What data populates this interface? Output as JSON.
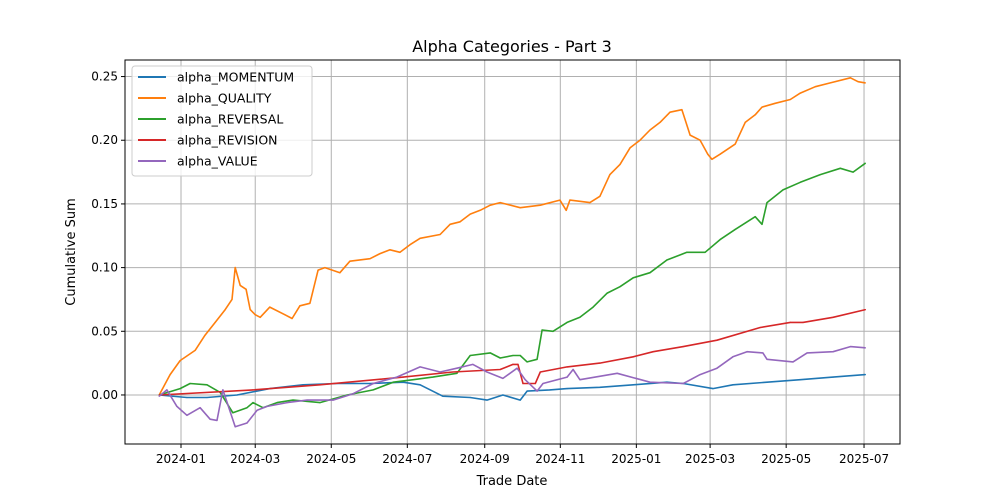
{
  "chart_data": {
    "type": "line",
    "title": "Alpha Categories - Part 3",
    "xlabel": "Trade Date",
    "ylabel": "Cumulative Sum",
    "x_units": "decimal year",
    "xlim": [
      2023.877,
      2025.579
    ],
    "ylim": [
      -0.0385,
      0.263
    ],
    "grid": true,
    "legend_placement": "top-left",
    "xticks": [
      {
        "label": "2024-01",
        "value": 2024.0
      },
      {
        "label": "2024-03",
        "value": 2024.163
      },
      {
        "label": "2024-05",
        "value": 2024.33
      },
      {
        "label": "2024-07",
        "value": 2024.497
      },
      {
        "label": "2024-09",
        "value": 2024.667
      },
      {
        "label": "2024-11",
        "value": 2024.833
      },
      {
        "label": "2025-01",
        "value": 2025.0
      },
      {
        "label": "2025-03",
        "value": 2025.162
      },
      {
        "label": "2025-05",
        "value": 2025.329
      },
      {
        "label": "2025-07",
        "value": 2025.5
      }
    ],
    "yticks": [
      {
        "label": "0.00",
        "value": 0.0
      },
      {
        "label": "0.05",
        "value": 0.05
      },
      {
        "label": "0.10",
        "value": 0.1
      },
      {
        "label": "0.15",
        "value": 0.15
      },
      {
        "label": "0.20",
        "value": 0.2
      },
      {
        "label": "0.25",
        "value": 0.25
      }
    ],
    "series": [
      {
        "name": "alpha_MOMENTUM",
        "color": "#1f77b4",
        "points": [
          [
            2023.952,
            0
          ],
          [
            2024.013,
            -0.002
          ],
          [
            2024.057,
            -0.002
          ],
          [
            2024.123,
            0
          ],
          [
            2024.195,
            0.005
          ],
          [
            2024.268,
            0.008
          ],
          [
            2024.343,
            0.009
          ],
          [
            2024.415,
            0.009
          ],
          [
            2024.488,
            0.01
          ],
          [
            2024.525,
            0.008
          ],
          [
            2024.575,
            -0.001
          ],
          [
            2024.635,
            -0.002
          ],
          [
            2024.672,
            -0.004
          ],
          [
            2024.707,
            0
          ],
          [
            2024.745,
            -0.004
          ],
          [
            2024.76,
            0.003
          ],
          [
            2024.81,
            0.004
          ],
          [
            2024.848,
            0.005
          ],
          [
            2024.92,
            0.006
          ],
          [
            2024.993,
            0.008
          ],
          [
            2025.067,
            0.01
          ],
          [
            2025.103,
            0.009
          ],
          [
            2025.168,
            0.005
          ],
          [
            2025.212,
            0.008
          ],
          [
            2025.287,
            0.01
          ],
          [
            2025.36,
            0.012
          ],
          [
            2025.432,
            0.014
          ],
          [
            2025.503,
            0.016
          ]
        ]
      },
      {
        "name": "alpha_QUALITY",
        "color": "#ff7f0e",
        "points": [
          [
            2023.952,
            0
          ],
          [
            2023.976,
            0.016
          ],
          [
            2023.998,
            0.027
          ],
          [
            2024.031,
            0.035
          ],
          [
            2024.053,
            0.047
          ],
          [
            2024.075,
            0.057
          ],
          [
            2024.097,
            0.067
          ],
          [
            2024.112,
            0.075
          ],
          [
            2024.119,
            0.1
          ],
          [
            2024.13,
            0.086
          ],
          [
            2024.143,
            0.083
          ],
          [
            2024.152,
            0.067
          ],
          [
            2024.163,
            0.063
          ],
          [
            2024.174,
            0.061
          ],
          [
            2024.195,
            0.069
          ],
          [
            2024.228,
            0.063
          ],
          [
            2024.244,
            0.06
          ],
          [
            2024.261,
            0.07
          ],
          [
            2024.283,
            0.072
          ],
          [
            2024.301,
            0.098
          ],
          [
            2024.316,
            0.1
          ],
          [
            2024.349,
            0.096
          ],
          [
            2024.371,
            0.105
          ],
          [
            2024.415,
            0.107
          ],
          [
            2024.437,
            0.111
          ],
          [
            2024.459,
            0.114
          ],
          [
            2024.481,
            0.112
          ],
          [
            2024.503,
            0.118
          ],
          [
            2024.525,
            0.123
          ],
          [
            2024.569,
            0.126
          ],
          [
            2024.591,
            0.134
          ],
          [
            2024.613,
            0.136
          ],
          [
            2024.635,
            0.142
          ],
          [
            2024.657,
            0.145
          ],
          [
            2024.679,
            0.149
          ],
          [
            2024.701,
            0.151
          ],
          [
            2024.745,
            0.147
          ],
          [
            2024.789,
            0.149
          ],
          [
            2024.832,
            0.153
          ],
          [
            2024.846,
            0.145
          ],
          [
            2024.854,
            0.153
          ],
          [
            2024.898,
            0.151
          ],
          [
            2024.92,
            0.156
          ],
          [
            2024.942,
            0.173
          ],
          [
            2024.964,
            0.181
          ],
          [
            2024.986,
            0.194
          ],
          [
            2025.008,
            0.2
          ],
          [
            2025.03,
            0.208
          ],
          [
            2025.052,
            0.214
          ],
          [
            2025.074,
            0.222
          ],
          [
            2025.1,
            0.224
          ],
          [
            2025.118,
            0.204
          ],
          [
            2025.14,
            0.2
          ],
          [
            2025.157,
            0.189
          ],
          [
            2025.166,
            0.185
          ],
          [
            2025.184,
            0.189
          ],
          [
            2025.217,
            0.197
          ],
          [
            2025.239,
            0.214
          ],
          [
            2025.261,
            0.22
          ],
          [
            2025.276,
            0.226
          ],
          [
            2025.305,
            0.229
          ],
          [
            2025.338,
            0.232
          ],
          [
            2025.36,
            0.237
          ],
          [
            2025.393,
            0.242
          ],
          [
            2025.426,
            0.245
          ],
          [
            2025.47,
            0.249
          ],
          [
            2025.487,
            0.246
          ],
          [
            2025.503,
            0.245
          ]
        ]
      },
      {
        "name": "alpha_REVERSAL",
        "color": "#2ca02c",
        "points": [
          [
            2023.952,
            0
          ],
          [
            2023.998,
            0.005
          ],
          [
            2024.02,
            0.009
          ],
          [
            2024.057,
            0.008
          ],
          [
            2024.086,
            0.002
          ],
          [
            2024.114,
            -0.014
          ],
          [
            2024.145,
            -0.01
          ],
          [
            2024.158,
            -0.006
          ],
          [
            2024.18,
            -0.01
          ],
          [
            2024.211,
            -0.006
          ],
          [
            2024.246,
            -0.004
          ],
          [
            2024.305,
            -0.006
          ],
          [
            2024.365,
            0
          ],
          [
            2024.422,
            0.004
          ],
          [
            2024.466,
            0.01
          ],
          [
            2024.51,
            0.012
          ],
          [
            2024.553,
            0.014
          ],
          [
            2024.606,
            0.017
          ],
          [
            2024.635,
            0.031
          ],
          [
            2024.679,
            0.033
          ],
          [
            2024.701,
            0.029
          ],
          [
            2024.729,
            0.031
          ],
          [
            2024.745,
            0.031
          ],
          [
            2024.76,
            0.026
          ],
          [
            2024.782,
            0.028
          ],
          [
            2024.793,
            0.051
          ],
          [
            2024.817,
            0.05
          ],
          [
            2024.848,
            0.057
          ],
          [
            2024.876,
            0.061
          ],
          [
            2024.905,
            0.069
          ],
          [
            2024.936,
            0.08
          ],
          [
            2024.964,
            0.085
          ],
          [
            2024.993,
            0.092
          ],
          [
            2025.03,
            0.096
          ],
          [
            2025.067,
            0.106
          ],
          [
            2025.111,
            0.112
          ],
          [
            2025.151,
            0.112
          ],
          [
            2025.184,
            0.122
          ],
          [
            2025.217,
            0.13
          ],
          [
            2025.261,
            0.14
          ],
          [
            2025.276,
            0.134
          ],
          [
            2025.287,
            0.151
          ],
          [
            2025.322,
            0.161
          ],
          [
            2025.36,
            0.167
          ],
          [
            2025.404,
            0.173
          ],
          [
            2025.448,
            0.178
          ],
          [
            2025.476,
            0.175
          ],
          [
            2025.503,
            0.182
          ]
        ]
      },
      {
        "name": "alpha_REVISION",
        "color": "#d62728",
        "points": [
          [
            2023.952,
            0
          ],
          [
            2024.158,
            0.004
          ],
          [
            2024.305,
            0.008
          ],
          [
            2024.488,
            0.014
          ],
          [
            2024.597,
            0.018
          ],
          [
            2024.701,
            0.02
          ],
          [
            2024.729,
            0.024
          ],
          [
            2024.74,
            0.024
          ],
          [
            2024.751,
            0.009
          ],
          [
            2024.778,
            0.009
          ],
          [
            2024.789,
            0.018
          ],
          [
            2024.848,
            0.022
          ],
          [
            2024.92,
            0.025
          ],
          [
            2024.993,
            0.03
          ],
          [
            2025.037,
            0.034
          ],
          [
            2025.103,
            0.038
          ],
          [
            2025.177,
            0.043
          ],
          [
            2025.272,
            0.053
          ],
          [
            2025.338,
            0.057
          ],
          [
            2025.366,
            0.057
          ],
          [
            2025.432,
            0.061
          ],
          [
            2025.503,
            0.067
          ]
        ]
      },
      {
        "name": "alpha_VALUE",
        "color": "#9467bd",
        "points": [
          [
            2023.952,
            -0.001
          ],
          [
            2023.969,
            0.004
          ],
          [
            2023.991,
            -0.009
          ],
          [
            2024.013,
            -0.016
          ],
          [
            2024.042,
            -0.01
          ],
          [
            2024.064,
            -0.019
          ],
          [
            2024.079,
            -0.02
          ],
          [
            2024.092,
            0.004
          ],
          [
            2024.119,
            -0.025
          ],
          [
            2024.145,
            -0.022
          ],
          [
            2024.167,
            -0.012
          ],
          [
            2024.189,
            -0.009
          ],
          [
            2024.233,
            -0.006
          ],
          [
            2024.277,
            -0.004
          ],
          [
            2024.334,
            -0.004
          ],
          [
            2024.378,
            0.001
          ],
          [
            2024.422,
            0.009
          ],
          [
            2024.474,
            0.014
          ],
          [
            2024.525,
            0.022
          ],
          [
            2024.569,
            0.018
          ],
          [
            2024.606,
            0.021
          ],
          [
            2024.641,
            0.024
          ],
          [
            2024.672,
            0.018
          ],
          [
            2024.707,
            0.013
          ],
          [
            2024.738,
            0.021
          ],
          [
            2024.756,
            0.012
          ],
          [
            2024.782,
            0.003
          ],
          [
            2024.795,
            0.009
          ],
          [
            2024.848,
            0.014
          ],
          [
            2024.861,
            0.02
          ],
          [
            2024.876,
            0.012
          ],
          [
            2024.958,
            0.017
          ],
          [
            2025.03,
            0.01
          ],
          [
            2025.103,
            0.009
          ],
          [
            2025.14,
            0.016
          ],
          [
            2025.177,
            0.021
          ],
          [
            2025.212,
            0.03
          ],
          [
            2025.243,
            0.034
          ],
          [
            2025.278,
            0.033
          ],
          [
            2025.287,
            0.028
          ],
          [
            2025.344,
            0.026
          ],
          [
            2025.375,
            0.033
          ],
          [
            2025.432,
            0.034
          ],
          [
            2025.47,
            0.038
          ],
          [
            2025.503,
            0.037
          ]
        ]
      }
    ]
  }
}
